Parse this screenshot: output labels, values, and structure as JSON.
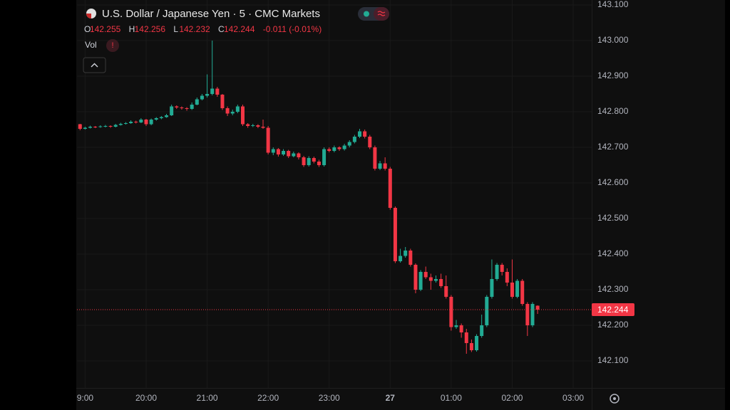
{
  "chart_data": {
    "type": "candlestick",
    "title": "U.S. Dollar / Japanese Yen · 5 · CMC Markets",
    "legend_ohlc": [
      {
        "key": "O",
        "value": "142.255"
      },
      {
        "key": "H",
        "value": "142.256"
      },
      {
        "key": "L",
        "value": "142.232"
      },
      {
        "key": "C",
        "value": "142.244"
      }
    ],
    "change": "-0.011 (-0.01%)",
    "volume_label": "Vol",
    "up_color": "#22ab94",
    "down_color": "#f23645",
    "grid": true,
    "last_price": 142.244,
    "xlim": [
      -8.0,
      498.2
    ],
    "xticks": [
      {
        "value": 0,
        "label": "9:00"
      },
      {
        "value": 60,
        "label": "20:00"
      },
      {
        "value": 120,
        "label": "21:00"
      },
      {
        "value": 180,
        "label": "22:00"
      },
      {
        "value": 240,
        "label": "23:00"
      },
      300,
      {
        "value": 360,
        "label": "01:00"
      },
      {
        "value": 420,
        "label": "02:00"
      },
      {
        "value": 480,
        "label": "03:00"
      }
    ],
    "xtick_override": {
      "300": "27"
    },
    "ylim": [
      142.024,
      143.114
    ],
    "yticks": [
      {
        "value": 142.1,
        "label": "142.100"
      },
      {
        "value": 142.2,
        "label": "142.200"
      },
      {
        "value": 142.3,
        "label": "142.300"
      },
      {
        "value": 142.4,
        "label": "142.400"
      },
      {
        "value": 142.5,
        "label": "142.500"
      },
      {
        "value": 142.6,
        "label": "142.600"
      },
      {
        "value": 142.7,
        "label": "142.700"
      },
      {
        "value": 142.8,
        "label": "142.800"
      },
      {
        "value": 142.9,
        "label": "142.900"
      },
      {
        "value": 143.0,
        "label": "143.000"
      },
      {
        "value": 143.1,
        "label": "143.100"
      }
    ],
    "x": [
      -5,
      0,
      5,
      10,
      15,
      20,
      25,
      30,
      35,
      40,
      45,
      50,
      55,
      60,
      65,
      70,
      75,
      80,
      85,
      90,
      95,
      100,
      105,
      110,
      115,
      120,
      125,
      130,
      135,
      140,
      145,
      150,
      155,
      160,
      165,
      170,
      175,
      180,
      185,
      190,
      195,
      200,
      205,
      210,
      215,
      220,
      225,
      230,
      235,
      240,
      245,
      250,
      255,
      260,
      265,
      270,
      275,
      280,
      285,
      290,
      295,
      300,
      305,
      310,
      315,
      320,
      325,
      330,
      335,
      340,
      345,
      350,
      355,
      360,
      365,
      370,
      375,
      380,
      385,
      390,
      395,
      400,
      405,
      410,
      415,
      420,
      425,
      430,
      435,
      440,
      445
    ],
    "ohlc": [
      [
        142.765,
        142.766,
        142.748,
        142.752
      ],
      [
        142.752,
        142.758,
        142.75,
        142.755
      ],
      [
        142.755,
        142.761,
        142.753,
        142.758
      ],
      [
        142.758,
        142.76,
        142.754,
        142.757
      ],
      [
        142.757,
        142.762,
        142.755,
        142.759
      ],
      [
        142.759,
        142.763,
        142.756,
        142.76
      ],
      [
        142.76,
        142.762,
        142.755,
        142.758
      ],
      [
        142.758,
        142.766,
        142.756,
        142.763
      ],
      [
        142.763,
        142.769,
        142.761,
        142.766
      ],
      [
        142.766,
        142.771,
        142.764,
        142.768
      ],
      [
        142.768,
        142.776,
        142.766,
        142.772
      ],
      [
        142.772,
        142.775,
        142.767,
        142.77
      ],
      [
        142.77,
        142.782,
        142.768,
        142.778
      ],
      [
        142.778,
        142.78,
        142.76,
        142.765
      ],
      [
        142.765,
        142.781,
        142.762,
        142.778
      ],
      [
        142.778,
        142.785,
        142.775,
        142.782
      ],
      [
        142.782,
        142.788,
        142.779,
        142.785
      ],
      [
        142.785,
        142.794,
        142.783,
        142.79
      ],
      [
        142.79,
        142.82,
        142.788,
        142.815
      ],
      [
        142.815,
        142.818,
        142.808,
        142.812
      ],
      [
        142.812,
        142.815,
        142.806,
        142.81
      ],
      [
        142.81,
        142.813,
        142.803,
        142.808
      ],
      [
        142.808,
        142.826,
        142.805,
        142.82
      ],
      [
        142.82,
        142.84,
        142.818,
        142.835
      ],
      [
        142.835,
        142.85,
        142.832,
        142.845
      ],
      [
        142.845,
        142.905,
        142.84,
        142.85
      ],
      [
        142.85,
        143.0,
        142.846,
        142.865
      ],
      [
        142.865,
        142.87,
        142.842,
        142.848
      ],
      [
        142.848,
        142.85,
        142.805,
        142.81
      ],
      [
        142.81,
        142.815,
        142.788,
        142.795
      ],
      [
        142.795,
        142.806,
        142.79,
        142.8
      ],
      [
        142.8,
        142.82,
        142.796,
        142.815
      ],
      [
        142.815,
        142.82,
        142.76,
        142.765
      ],
      [
        142.765,
        142.768,
        142.755,
        142.76
      ],
      [
        142.76,
        142.766,
        142.757,
        142.762
      ],
      [
        142.762,
        142.765,
        142.754,
        142.758
      ],
      [
        142.758,
        142.778,
        142.752,
        142.755
      ],
      [
        142.755,
        142.76,
        142.68,
        142.685
      ],
      [
        142.685,
        142.7,
        142.678,
        142.695
      ],
      [
        142.695,
        142.698,
        142.674,
        142.68
      ],
      [
        142.68,
        142.695,
        142.676,
        142.69
      ],
      [
        142.69,
        142.693,
        142.67,
        142.675
      ],
      [
        142.675,
        142.688,
        142.672,
        142.683
      ],
      [
        142.683,
        142.686,
        142.666,
        142.672
      ],
      [
        142.672,
        142.676,
        142.645,
        142.65
      ],
      [
        142.65,
        142.675,
        142.646,
        142.67
      ],
      [
        142.67,
        142.674,
        142.655,
        142.66
      ],
      [
        142.66,
        142.665,
        142.645,
        142.65
      ],
      [
        142.65,
        142.7,
        142.646,
        142.695
      ],
      [
        142.695,
        142.7,
        142.686,
        142.69
      ],
      [
        142.69,
        142.705,
        142.686,
        142.7
      ],
      [
        142.7,
        142.703,
        142.69,
        142.695
      ],
      [
        142.695,
        142.71,
        142.691,
        142.705
      ],
      [
        142.705,
        142.72,
        142.7,
        142.715
      ],
      [
        142.715,
        142.735,
        142.711,
        142.73
      ],
      [
        142.73,
        142.752,
        142.726,
        142.745
      ],
      [
        142.745,
        142.75,
        142.725,
        142.73
      ],
      [
        142.73,
        142.735,
        142.695,
        142.7
      ],
      [
        142.7,
        142.705,
        142.635,
        142.64
      ],
      [
        142.64,
        142.662,
        142.636,
        142.655
      ],
      [
        142.655,
        142.672,
        142.635,
        142.64
      ],
      [
        142.64,
        142.645,
        142.525,
        142.53
      ],
      [
        142.53,
        142.534,
        142.375,
        142.38
      ],
      [
        142.38,
        142.415,
        142.376,
        142.395
      ],
      [
        142.395,
        142.42,
        142.39,
        142.41
      ],
      [
        142.41,
        142.415,
        142.365,
        142.37
      ],
      [
        142.37,
        142.374,
        142.29,
        142.3
      ],
      [
        142.3,
        142.355,
        142.296,
        142.35
      ],
      [
        142.35,
        142.365,
        142.33,
        142.335
      ],
      [
        142.335,
        142.345,
        142.3,
        142.325
      ],
      [
        142.325,
        142.34,
        142.32,
        142.33
      ],
      [
        142.33,
        142.345,
        142.305,
        142.31
      ],
      [
        142.31,
        142.34,
        142.275,
        142.28
      ],
      [
        142.28,
        142.285,
        142.185,
        142.195
      ],
      [
        142.195,
        142.215,
        142.19,
        142.2
      ],
      [
        142.2,
        142.205,
        142.165,
        142.18
      ],
      [
        142.18,
        142.19,
        142.12,
        142.15
      ],
      [
        142.15,
        142.16,
        142.125,
        142.13
      ],
      [
        142.13,
        142.175,
        142.126,
        142.17
      ],
      [
        142.17,
        142.23,
        142.165,
        142.2
      ],
      [
        142.2,
        142.285,
        142.195,
        142.28
      ],
      [
        142.28,
        142.385,
        142.275,
        142.33
      ],
      [
        142.33,
        142.375,
        142.325,
        142.37
      ],
      [
        142.37,
        142.375,
        142.34,
        142.35
      ],
      [
        142.35,
        142.36,
        142.31,
        142.32
      ],
      [
        142.32,
        142.385,
        142.275,
        142.28
      ],
      [
        142.28,
        142.33,
        142.276,
        142.325
      ],
      [
        142.325,
        142.33,
        142.255,
        142.26
      ],
      [
        142.26,
        142.265,
        142.17,
        142.2
      ],
      [
        142.2,
        142.265,
        142.195,
        142.26
      ],
      [
        142.255,
        142.256,
        142.232,
        142.244
      ]
    ]
  }
}
